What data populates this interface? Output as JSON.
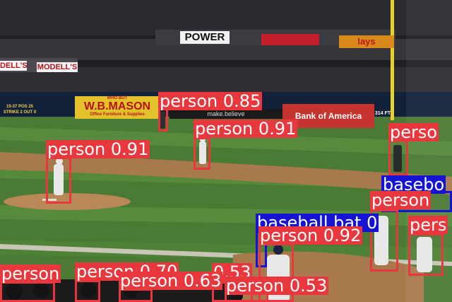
{
  "signs": {
    "top_board": "POWER",
    "modells_left": "DELL'S",
    "modells_right": "MODELL'S",
    "wb_mason_top": "WHO BUT",
    "wb_mason_main": "W.B.MASON",
    "wb_mason_sub": "Office Furniture & Supplies",
    "make_believe": "make.believe",
    "bank_of_america": "Bank of America",
    "lays": "lays",
    "distance": "314 FT",
    "scoreboard_left": "15-37 POS 25",
    "scoreboard_right": "STRIKE 2 OUT 0"
  },
  "colors": {
    "person": "#e8383d",
    "baseball_bat": "#1414d2"
  },
  "detections": [
    {
      "class": "person",
      "label": "person 0.85"
    },
    {
      "class": "person",
      "label": "person 0.91"
    },
    {
      "class": "person",
      "label": "person 0.91"
    },
    {
      "class": "person",
      "label": "perso"
    },
    {
      "class": "baseball_bat",
      "label": "basebo"
    },
    {
      "class": "person",
      "label": "person"
    },
    {
      "class": "baseball_bat",
      "label": "baseball bat 0"
    },
    {
      "class": "person",
      "label": "person 0.92"
    },
    {
      "class": "person",
      "label": "pers"
    },
    {
      "class": "person",
      "label": "person"
    },
    {
      "class": "person",
      "label": "person 0.70"
    },
    {
      "class": "person",
      "label": "0.53"
    },
    {
      "class": "person",
      "label": "person 0.63"
    },
    {
      "class": "person",
      "label": "person 0.53"
    }
  ]
}
